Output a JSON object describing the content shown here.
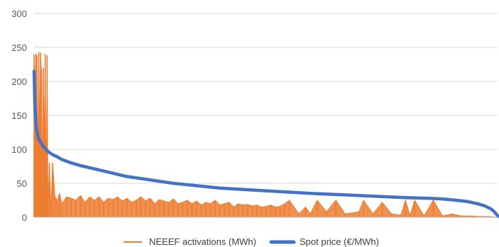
{
  "chart_data": {
    "type": "line",
    "title": "",
    "xlabel": "",
    "ylabel": "",
    "ylim": [
      0,
      300
    ],
    "yticks": [
      0,
      50,
      100,
      150,
      200,
      250,
      300
    ],
    "grid": true,
    "legend_position": "bottom",
    "x_axis": "observations sorted by descending spot price (no tick labels)",
    "colors": {
      "activations": "#ED7D31",
      "spot": "#4472C4",
      "grid": "#D9D9D9",
      "axis": "#BFBFBF"
    },
    "series": [
      {
        "name": "NEEEF activations (MWh)",
        "kind": "dense spikes",
        "x": [
          0,
          0.2,
          0.4,
          0.6,
          0.8,
          1.0,
          1.2,
          1.4,
          1.6,
          1.8,
          2.0,
          2.2,
          2.4,
          2.6,
          2.8,
          3.0,
          3.3,
          3.6,
          4.0,
          4.5,
          5,
          5.5,
          6,
          7,
          8,
          9,
          10,
          11,
          12,
          13,
          14,
          15,
          16,
          17,
          18,
          19,
          20,
          21,
          22,
          23,
          24,
          25,
          26,
          27,
          28,
          29,
          30,
          31,
          32,
          33,
          34,
          35,
          36,
          37,
          38,
          39,
          40,
          41,
          42,
          43,
          44,
          45,
          46,
          47,
          48,
          49,
          50,
          51,
          52,
          53,
          54,
          55,
          57,
          58.5,
          59.5,
          61,
          63,
          65,
          67,
          70,
          71,
          73,
          75,
          77,
          79,
          80,
          81,
          82,
          84,
          86,
          88,
          90,
          92,
          94,
          96,
          98,
          100
        ],
        "values": [
          240,
          175,
          240,
          238,
          60,
          243,
          120,
          242,
          215,
          40,
          220,
          95,
          240,
          20,
          238,
          15,
          80,
          10,
          80,
          30,
          25,
          35,
          20,
          30,
          28,
          25,
          32,
          22,
          30,
          25,
          30,
          22,
          28,
          26,
          30,
          24,
          28,
          22,
          25,
          30,
          24,
          28,
          20,
          26,
          24,
          22,
          27,
          20,
          22,
          25,
          20,
          24,
          18,
          22,
          20,
          25,
          18,
          20,
          22,
          15,
          20,
          18,
          19,
          17,
          18,
          15,
          16,
          18,
          15,
          16,
          20,
          25,
          5,
          15,
          5,
          25,
          8,
          25,
          5,
          8,
          25,
          5,
          22,
          5,
          3,
          25,
          3,
          25,
          2,
          25,
          2,
          5,
          2,
          2,
          1,
          1,
          0
        ]
      },
      {
        "name": "Spot price (€/MWh)",
        "kind": "line",
        "x": [
          0,
          0.2,
          0.5,
          1.0,
          2.0,
          3.0,
          4.0,
          5.0,
          6.0,
          8.0,
          10.0,
          15.0,
          20.0,
          30.0,
          40.0,
          50.0,
          60.0,
          70.0,
          80.0,
          85.0,
          88.0,
          91.0,
          93.5,
          95.5,
          97.0,
          98.5,
          99.3,
          100.0
        ],
        "values": [
          215,
          160,
          130,
          115,
          104,
          97,
          92,
          89,
          85,
          80,
          76,
          68,
          60,
          50,
          43,
          39,
          35,
          32,
          29,
          28,
          27,
          25,
          23,
          20,
          17,
          12,
          7,
          1
        ]
      }
    ]
  }
}
